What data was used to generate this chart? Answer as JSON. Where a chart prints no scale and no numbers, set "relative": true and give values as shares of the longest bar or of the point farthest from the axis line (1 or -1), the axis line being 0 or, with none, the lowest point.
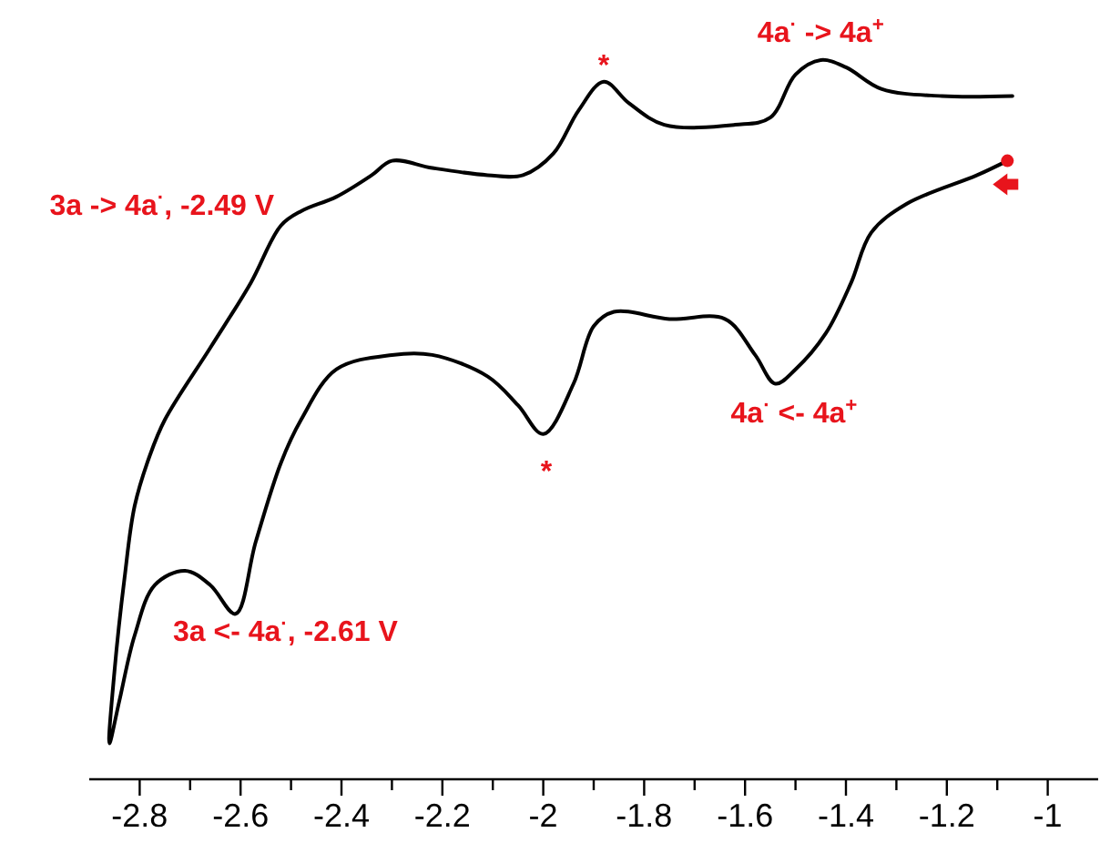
{
  "chart_data": {
    "type": "line",
    "relative": true,
    "xlim": [
      -2.9,
      -0.9
    ],
    "xticks": [
      -2.8,
      {
        "value": -2.7,
        "label": null
      },
      -2.6,
      {
        "value": -2.5,
        "label": null
      },
      -2.4,
      {
        "value": -2.3,
        "label": null
      },
      -2.2,
      {
        "value": -2.1,
        "label": null
      },
      -2.0,
      {
        "value": -1.9,
        "label": null
      },
      -1.8,
      {
        "value": -1.7,
        "label": null
      },
      -1.6,
      {
        "value": -1.5,
        "label": null
      },
      -1.4,
      {
        "value": -1.3,
        "label": null
      },
      -1.2,
      {
        "value": -1.1,
        "label": null
      },
      -1.0
    ],
    "x": [
      -1.08,
      -1.14,
      -1.28,
      -1.35,
      -1.39,
      -1.44,
      -1.5,
      -1.54,
      -1.58,
      -1.64,
      -1.75,
      -1.86,
      -1.9,
      -1.94,
      -2.0,
      -2.05,
      -2.11,
      -2.22,
      -2.3,
      -2.41,
      -2.48,
      -2.52,
      -2.57,
      -2.61,
      -2.66,
      -2.71,
      -2.77,
      -2.81,
      -2.84,
      -2.86,
      -2.85,
      -2.83,
      -2.81,
      -2.78,
      -2.75,
      -2.66,
      -2.58,
      -2.52,
      -2.48,
      -2.41,
      -2.34,
      -2.3,
      -2.22,
      -2.11,
      -2.04,
      -1.98,
      -1.93,
      -1.88,
      -1.83,
      -1.76,
      -1.62,
      -1.55,
      -1.5,
      -1.45,
      -1.4,
      -1.33,
      -1.21,
      -1.07
    ],
    "series": [
      {
        "color": "#000000",
        "values": [
          0.86,
          0.84,
          0.8,
          0.76,
          0.69,
          0.62,
          0.57,
          0.55,
          0.59,
          0.64,
          0.64,
          0.65,
          0.63,
          0.55,
          0.48,
          0.52,
          0.56,
          0.59,
          0.59,
          0.57,
          0.5,
          0.44,
          0.33,
          0.23,
          0.27,
          0.29,
          0.27,
          0.2,
          0.11,
          0.05,
          0.15,
          0.28,
          0.38,
          0.45,
          0.5,
          0.6,
          0.69,
          0.77,
          0.79,
          0.81,
          0.84,
          0.86,
          0.85,
          0.84,
          0.84,
          0.87,
          0.93,
          0.97,
          0.94,
          0.91,
          0.91,
          0.92,
          0.98,
          1,
          0.99,
          0.96,
          0.95,
          0.95
        ]
      }
    ],
    "annotations": [
      {
        "text": "3a -> 4a$^{·}$, -2.49 V",
        "x": -2.49,
        "y": 0.78
      },
      {
        "text": "*",
        "x": -1.88,
        "y": 0.97
      },
      {
        "text": "4a$^{·}$ -> 4a$^{+}$",
        "x": -1.45,
        "y": 1
      },
      "4a$^{·}$ <- 4a$^{+}$",
      "*",
      "3a <- 4a$^{·}$, -2.61 V"
    ]
  }
}
